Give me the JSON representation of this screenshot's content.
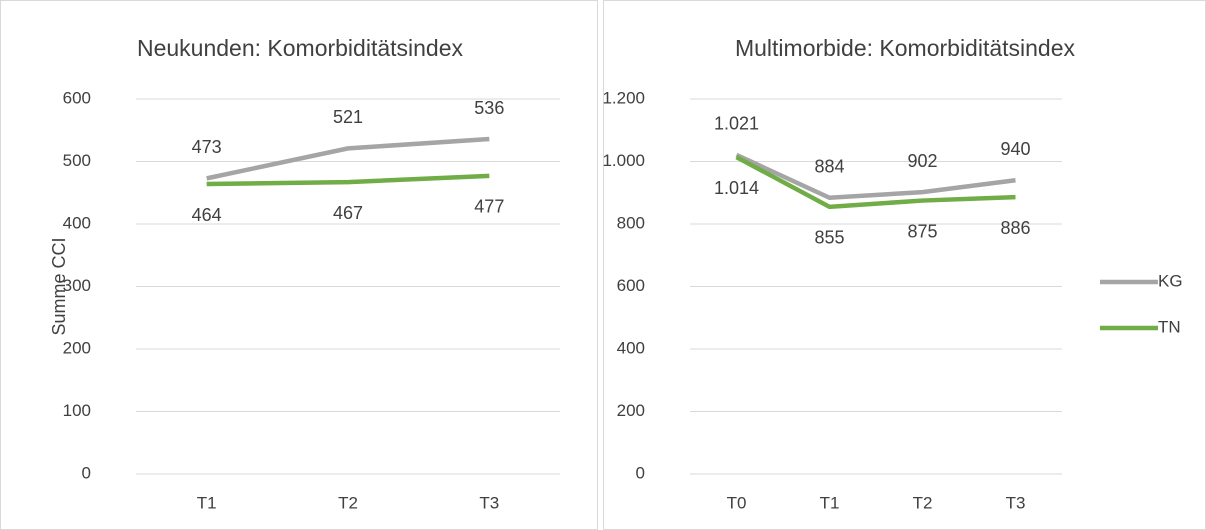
{
  "chart_data": [
    {
      "type": "line",
      "title": "Neukunden: Komorbiditätsindex",
      "ylabel": "Summe CCI",
      "categories": [
        "T1",
        "T2",
        "T3"
      ],
      "series": [
        {
          "name": "KG",
          "color": "#a5a5a5",
          "label_color": "#b4b4b4",
          "values": [
            473,
            521,
            536
          ]
        },
        {
          "name": "TN",
          "color": "#70ad47",
          "label_color": "#92d050",
          "values": [
            464,
            467,
            477
          ]
        }
      ],
      "ylim": [
        0,
        600
      ],
      "yticks": [
        0,
        100,
        200,
        300,
        400,
        500,
        600
      ],
      "grid": true
    },
    {
      "type": "line",
      "title": "Multimorbide: Komorbiditätsindex",
      "categories": [
        "T0",
        "T1",
        "T2",
        "T3"
      ],
      "series": [
        {
          "name": "KG",
          "color": "#a5a5a5",
          "label_color": "#b4b4b4",
          "values": [
            1021,
            884,
            902,
            940
          ],
          "value_labels": [
            "1.021",
            "884",
            "902",
            "940"
          ]
        },
        {
          "name": "TN",
          "color": "#70ad47",
          "label_color": "#92d050",
          "values": [
            1014,
            855,
            875,
            886
          ],
          "value_labels": [
            "1.014",
            "855",
            "875",
            "886"
          ]
        }
      ],
      "ylim": [
        0,
        1200
      ],
      "yticks": [
        0,
        200,
        400,
        600,
        800,
        {
          "value": 1000,
          "label": "1.000"
        },
        {
          "value": 1200,
          "label": "1.200"
        }
      ],
      "grid": true,
      "legend": "right"
    }
  ]
}
